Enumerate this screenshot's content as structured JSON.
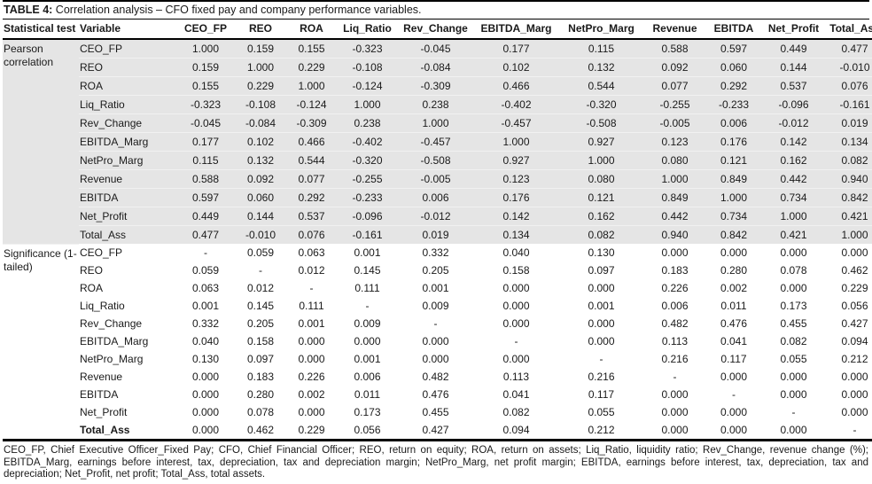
{
  "title": {
    "prefix": "TABLE 4:",
    "text": " Correlation analysis – CFO fixed pay and company performance variables."
  },
  "table": {
    "columns": [
      "Statistical test",
      "Variable",
      "CEO_FP",
      "REO",
      "ROA",
      "Liq_Ratio",
      "Rev_Change",
      "EBITDA_Marg",
      "NetPro_Marg",
      "Revenue",
      "EBITDA",
      "Net_Profit",
      "Total_Ass"
    ],
    "sections": [
      {
        "name": "Pearson correlation",
        "key": "pearson-correlation",
        "rows": [
          {
            "variable": "CEO_FP",
            "values": [
              "1.000",
              "0.159",
              "0.155",
              "-0.323",
              "-0.045",
              "0.177",
              "0.115",
              "0.588",
              "0.597",
              "0.449",
              "0.477"
            ]
          },
          {
            "variable": "REO",
            "values": [
              "0.159",
              "1.000",
              "0.229",
              "-0.108",
              "-0.084",
              "0.102",
              "0.132",
              "0.092",
              "0.060",
              "0.144",
              "-0.010"
            ]
          },
          {
            "variable": "ROA",
            "values": [
              "0.155",
              "0.229",
              "1.000",
              "-0.124",
              "-0.309",
              "0.466",
              "0.544",
              "0.077",
              "0.292",
              "0.537",
              "0.076"
            ]
          },
          {
            "variable": "Liq_Ratio",
            "values": [
              "-0.323",
              "-0.108",
              "-0.124",
              "1.000",
              "0.238",
              "-0.402",
              "-0.320",
              "-0.255",
              "-0.233",
              "-0.096",
              "-0.161"
            ]
          },
          {
            "variable": "Rev_Change",
            "values": [
              "-0.045",
              "-0.084",
              "-0.309",
              "0.238",
              "1.000",
              "-0.457",
              "-0.508",
              "-0.005",
              "0.006",
              "-0.012",
              "0.019"
            ]
          },
          {
            "variable": "EBITDA_Marg",
            "values": [
              "0.177",
              "0.102",
              "0.466",
              "-0.402",
              "-0.457",
              "1.000",
              "0.927",
              "0.123",
              "0.176",
              "0.142",
              "0.134"
            ]
          },
          {
            "variable": "NetPro_Marg",
            "values": [
              "0.115",
              "0.132",
              "0.544",
              "-0.320",
              "-0.508",
              "0.927",
              "1.000",
              "0.080",
              "0.121",
              "0.162",
              "0.082"
            ]
          },
          {
            "variable": "Revenue",
            "values": [
              "0.588",
              "0.092",
              "0.077",
              "-0.255",
              "-0.005",
              "0.123",
              "0.080",
              "1.000",
              "0.849",
              "0.442",
              "0.940"
            ]
          },
          {
            "variable": "EBITDA",
            "values": [
              "0.597",
              "0.060",
              "0.292",
              "-0.233",
              "0.006",
              "0.176",
              "0.121",
              "0.849",
              "1.000",
              "0.734",
              "0.842"
            ]
          },
          {
            "variable": "Net_Profit",
            "values": [
              "0.449",
              "0.144",
              "0.537",
              "-0.096",
              "-0.012",
              "0.142",
              "0.162",
              "0.442",
              "0.734",
              "1.000",
              "0.421"
            ]
          },
          {
            "variable": "Total_Ass",
            "values": [
              "0.477",
              "-0.010",
              "0.076",
              "-0.161",
              "0.019",
              "0.134",
              "0.082",
              "0.940",
              "0.842",
              "0.421",
              "1.000"
            ]
          }
        ]
      },
      {
        "name": "Significance (1-tailed)",
        "key": "significance-1-tailed",
        "rows": [
          {
            "variable": "CEO_FP",
            "values": [
              "-",
              "0.059",
              "0.063",
              "0.001",
              "0.332",
              "0.040",
              "0.130",
              "0.000",
              "0.000",
              "0.000",
              "0.000"
            ]
          },
          {
            "variable": "REO",
            "values": [
              "0.059",
              "-",
              "0.012",
              "0.145",
              "0.205",
              "0.158",
              "0.097",
              "0.183",
              "0.280",
              "0.078",
              "0.462"
            ]
          },
          {
            "variable": "ROA",
            "values": [
              "0.063",
              "0.012",
              "-",
              "0.111",
              "0.001",
              "0.000",
              "0.000",
              "0.226",
              "0.002",
              "0.000",
              "0.229"
            ]
          },
          {
            "variable": "Liq_Ratio",
            "values": [
              "0.001",
              "0.145",
              "0.111",
              "-",
              "0.009",
              "0.000",
              "0.001",
              "0.006",
              "0.011",
              "0.173",
              "0.056"
            ]
          },
          {
            "variable": "Rev_Change",
            "values": [
              "0.332",
              "0.205",
              "0.001",
              "0.009",
              "-",
              "0.000",
              "0.000",
              "0.482",
              "0.476",
              "0.455",
              "0.427"
            ]
          },
          {
            "variable": "EBITDA_Marg",
            "values": [
              "0.040",
              "0.158",
              "0.000",
              "0.000",
              "0.000",
              "-",
              "0.000",
              "0.113",
              "0.041",
              "0.082",
              "0.094"
            ]
          },
          {
            "variable": "NetPro_Marg",
            "values": [
              "0.130",
              "0.097",
              "0.000",
              "0.001",
              "0.000",
              "0.000",
              "-",
              "0.216",
              "0.117",
              "0.055",
              "0.212"
            ]
          },
          {
            "variable": "Revenue",
            "values": [
              "0.000",
              "0.183",
              "0.226",
              "0.006",
              "0.482",
              "0.113",
              "0.216",
              "-",
              "0.000",
              "0.000",
              "0.000"
            ]
          },
          {
            "variable": "EBITDA",
            "values": [
              "0.000",
              "0.280",
              "0.002",
              "0.011",
              "0.476",
              "0.041",
              "0.117",
              "0.000",
              "-",
              "0.000",
              "0.000"
            ]
          },
          {
            "variable": "Net_Profit",
            "values": [
              "0.000",
              "0.078",
              "0.000",
              "0.173",
              "0.455",
              "0.082",
              "0.055",
              "0.000",
              "0.000",
              "-",
              "0.000"
            ]
          },
          {
            "variable": "Total_Ass",
            "values": [
              "0.000",
              "0.462",
              "0.229",
              "0.056",
              "0.427",
              "0.094",
              "0.212",
              "0.000",
              "0.000",
              "0.000",
              "-"
            ],
            "bold": true
          }
        ]
      }
    ]
  },
  "footnote": "CEO_FP, Chief Executive Officer_Fixed Pay; CFO, Chief Financial Officer; REO, return on equity; ROA, return on assets; Liq_Ratio, liquidity ratio; Rev_Change, revenue change (%); EBITDA_Marg, earnings before interest, tax, depreciation, tax and depreciation margin; NetPro_Marg, net profit margin; EBITDA, earnings before interest, tax, depreciation, tax and depreciation; Net_Profit, net profit; Total_Ass, total assets.",
  "colors": {
    "section_shade": "#e5e5e5",
    "border": "#000000",
    "text": "#1a1a1a"
  }
}
